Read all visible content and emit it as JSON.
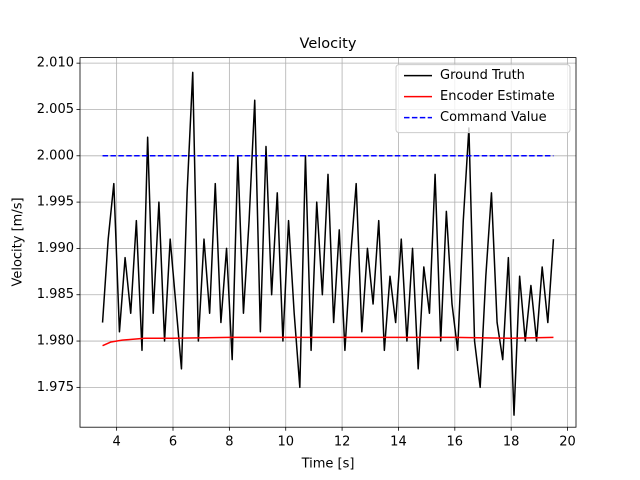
{
  "chart_data": {
    "type": "line",
    "title": "Velocity",
    "x_label": "Time [s]",
    "y_label": "Velocity [m/s]",
    "xlim": [
      2.7,
      20.3
    ],
    "ylim": [
      1.9707,
      2.0106
    ],
    "xticks": [
      4,
      6,
      8,
      10,
      12,
      14,
      16,
      18,
      20
    ],
    "yticks": [
      1.975,
      {
        "value": 1.98,
        "label": "1.980"
      },
      1.985,
      {
        "value": 1.99,
        "label": "1.990"
      },
      1.995,
      {
        "value": 2.0,
        "label": "2.000"
      },
      2.005,
      {
        "value": 2.01,
        "label": "2.010"
      }
    ],
    "grid": true,
    "legend": "upper right",
    "series": [
      {
        "name": "Ground Truth",
        "color": "#000000",
        "dash": "solid",
        "x": [
          3.5,
          3.7,
          3.9,
          4.1,
          4.3,
          4.5,
          4.7,
          4.9,
          5.1,
          5.3,
          5.5,
          5.7,
          5.9,
          6.1,
          6.3,
          6.5,
          6.7,
          6.9,
          7.1,
          7.3,
          7.5,
          7.7,
          7.9,
          8.1,
          8.3,
          8.5,
          8.7,
          8.9,
          9.1,
          9.3,
          9.5,
          9.7,
          9.9,
          10.1,
          10.3,
          10.5,
          10.7,
          10.9,
          11.1,
          11.3,
          11.5,
          11.7,
          11.9,
          12.1,
          12.3,
          12.5,
          12.7,
          12.9,
          13.1,
          13.3,
          13.5,
          13.7,
          13.9,
          14.1,
          14.3,
          14.5,
          14.7,
          14.9,
          15.1,
          15.3,
          15.5,
          15.7,
          15.9,
          16.1,
          16.3,
          16.5,
          16.7,
          16.9,
          17.1,
          17.3,
          17.5,
          17.7,
          17.9,
          18.1,
          18.3,
          18.5,
          18.7,
          18.9,
          19.1,
          19.3,
          19.5
        ],
        "values": [
          1.982,
          1.991,
          1.997,
          1.981,
          1.989,
          1.983,
          1.993,
          1.979,
          2.002,
          1.983,
          1.995,
          1.98,
          1.991,
          1.984,
          1.977,
          1.996,
          2.009,
          1.98,
          1.991,
          1.983,
          1.997,
          1.982,
          1.99,
          1.978,
          2.0,
          1.983,
          1.993,
          2.006,
          1.981,
          2.001,
          1.985,
          1.996,
          1.98,
          1.993,
          1.983,
          1.975,
          2.0,
          1.979,
          1.995,
          1.985,
          1.998,
          1.982,
          1.992,
          1.979,
          1.989,
          1.997,
          1.981,
          1.99,
          1.984,
          1.993,
          1.979,
          1.987,
          1.982,
          1.991,
          1.98,
          1.99,
          1.977,
          1.988,
          1.983,
          1.998,
          1.98,
          1.994,
          1.984,
          1.979,
          1.993,
          2.003,
          1.98,
          1.975,
          1.987,
          1.996,
          1.982,
          1.978,
          1.989,
          1.972,
          1.987,
          1.98,
          1.986,
          1.98,
          1.988,
          1.982,
          1.991
        ]
      },
      {
        "name": "Encoder Estimate",
        "color": "#ff0000",
        "dash": "solid",
        "x": [
          3.5,
          3.8,
          4.2,
          5,
          6,
          8,
          10,
          12,
          14,
          16,
          18,
          19.5
        ],
        "values": [
          1.9795,
          1.9799,
          1.9801,
          1.9803,
          1.9803,
          1.9804,
          1.9804,
          1.9804,
          1.9804,
          1.9804,
          1.9803,
          1.9804
        ]
      },
      {
        "name": "Command Value",
        "color": "#0000ff",
        "dash": "dashed",
        "x": [
          3.5,
          19.5
        ],
        "values": [
          2.0,
          2.0
        ]
      }
    ]
  }
}
